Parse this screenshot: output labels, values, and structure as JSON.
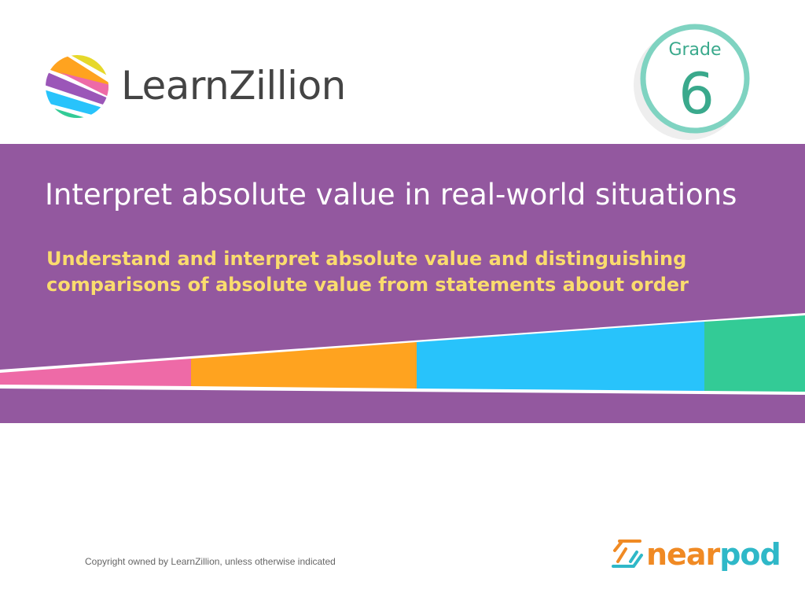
{
  "header": {
    "brand": "LearnZillion",
    "grade_label": "Grade",
    "grade_number": "6"
  },
  "banner": {
    "title": "Interpret absolute value in real-world situations",
    "subtitle_line1": "Understand and interpret absolute value and distinguishing",
    "subtitle_line2": "comparisons of absolute value from statements about order"
  },
  "footer": {
    "copyright": "Copyright owned by LearnZillion, unless otherwise indicated",
    "partner_a": "near",
    "partner_b": "pod"
  },
  "colors": {
    "purple": "#93589f",
    "pink": "#ee6aa7",
    "orange": "#ffa31f",
    "blue": "#28c3fb",
    "green": "#33cb96",
    "yellow": "#fadc6e",
    "teal": "#7fd3c1"
  }
}
